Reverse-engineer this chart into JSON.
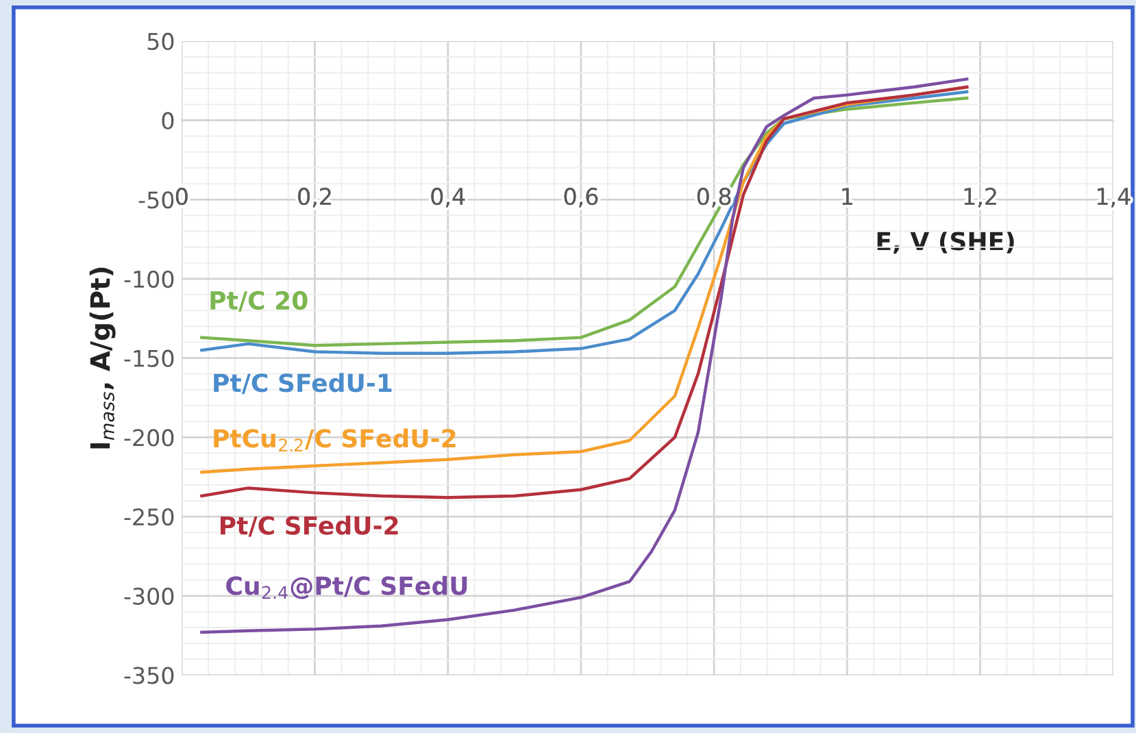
{
  "chart_data": {
    "type": "line",
    "xlabel": "E, V (SHE)",
    "ylabel": "I$_{mass}$, A/g(Pt)",
    "xlim": [
      0,
      1.4
    ],
    "ylim": [
      -350,
      50
    ],
    "xticks": [
      0,
      {
        "value": 0.2,
        "label": "0,2"
      },
      {
        "value": 0.4,
        "label": "0,4"
      },
      {
        "value": 0.6,
        "label": "0,6"
      },
      {
        "value": 0.8,
        "label": "0,8"
      },
      1,
      {
        "value": 1.2,
        "label": "1,2"
      },
      {
        "value": 1.4,
        "label": "1,4"
      }
    ],
    "yticks": [
      -350,
      -300,
      -250,
      -200,
      -150,
      -100,
      -50,
      0,
      50
    ],
    "grid": true,
    "legend": false,
    "marker": "none",
    "line_style": "solid",
    "series": [
      {
        "name": "Pt/C 20",
        "color": "#7cb650",
        "x": [
          0.03,
          0.1,
          0.2,
          0.3,
          0.4,
          0.5,
          0.6,
          0.673,
          0.741,
          0.776,
          0.811,
          0.844,
          0.879,
          0.905,
          1.0,
          1.1,
          1.18
        ],
        "values": [
          -137,
          -139,
          -142,
          -141,
          -140,
          -139,
          -137,
          -126,
          -105,
          -79,
          -53,
          -28,
          -8,
          1,
          7,
          11,
          14
        ]
      },
      {
        "name": "Pt/C SFedU-1",
        "color": "#4a8ccc",
        "x": [
          0.03,
          0.1,
          0.2,
          0.3,
          0.4,
          0.5,
          0.6,
          0.673,
          0.741,
          0.776,
          0.811,
          0.844,
          0.879,
          0.905,
          1.0,
          1.1,
          1.18
        ],
        "values": [
          -145,
          -141,
          -146,
          -147,
          -147,
          -146,
          -144,
          -138,
          -120,
          -97,
          -68,
          -39,
          -15,
          -2,
          9,
          14,
          18
        ]
      },
      {
        "name": "PtCu$_{2.2}$/C SFedU-2",
        "color": "#f5a02c",
        "x": [
          0.03,
          0.1,
          0.2,
          0.3,
          0.4,
          0.5,
          0.6,
          0.673,
          0.741,
          0.776,
          0.811,
          0.844,
          0.879,
          0.905,
          1.0,
          1.1,
          1.18
        ],
        "values": [
          -222,
          -220,
          -218,
          -216,
          -214,
          -211,
          -209,
          -202,
          -174,
          -131,
          -85,
          -39,
          -10,
          1,
          10,
          16,
          21
        ]
      },
      {
        "name": "Pt/C SFedU-2",
        "color": "#b4303c",
        "x": [
          0.03,
          0.1,
          0.2,
          0.3,
          0.4,
          0.5,
          0.6,
          0.673,
          0.741,
          0.776,
          0.811,
          0.844,
          0.879,
          0.905,
          1.0,
          1.1,
          1.18
        ],
        "values": [
          -237,
          -232,
          -235,
          -237,
          -238,
          -237,
          -233,
          -226,
          -200,
          -160,
          -103,
          -47,
          -13,
          1,
          11,
          16,
          21
        ]
      },
      {
        "name": "Cu$_{2.4}$@Pt/C SFedU",
        "color": "#7b4fa3",
        "x": [
          0.03,
          0.1,
          0.2,
          0.3,
          0.4,
          0.5,
          0.6,
          0.673,
          0.706,
          0.741,
          0.776,
          0.811,
          0.828,
          0.844,
          0.879,
          0.905,
          0.95,
          1.0,
          1.1,
          1.18
        ],
        "values": [
          -323,
          -322,
          -321,
          -319,
          -315,
          -309,
          -301,
          -291,
          -272,
          -246,
          -197,
          -111,
          -62,
          -30,
          -4,
          3,
          14,
          16,
          21,
          26
        ]
      }
    ]
  }
}
